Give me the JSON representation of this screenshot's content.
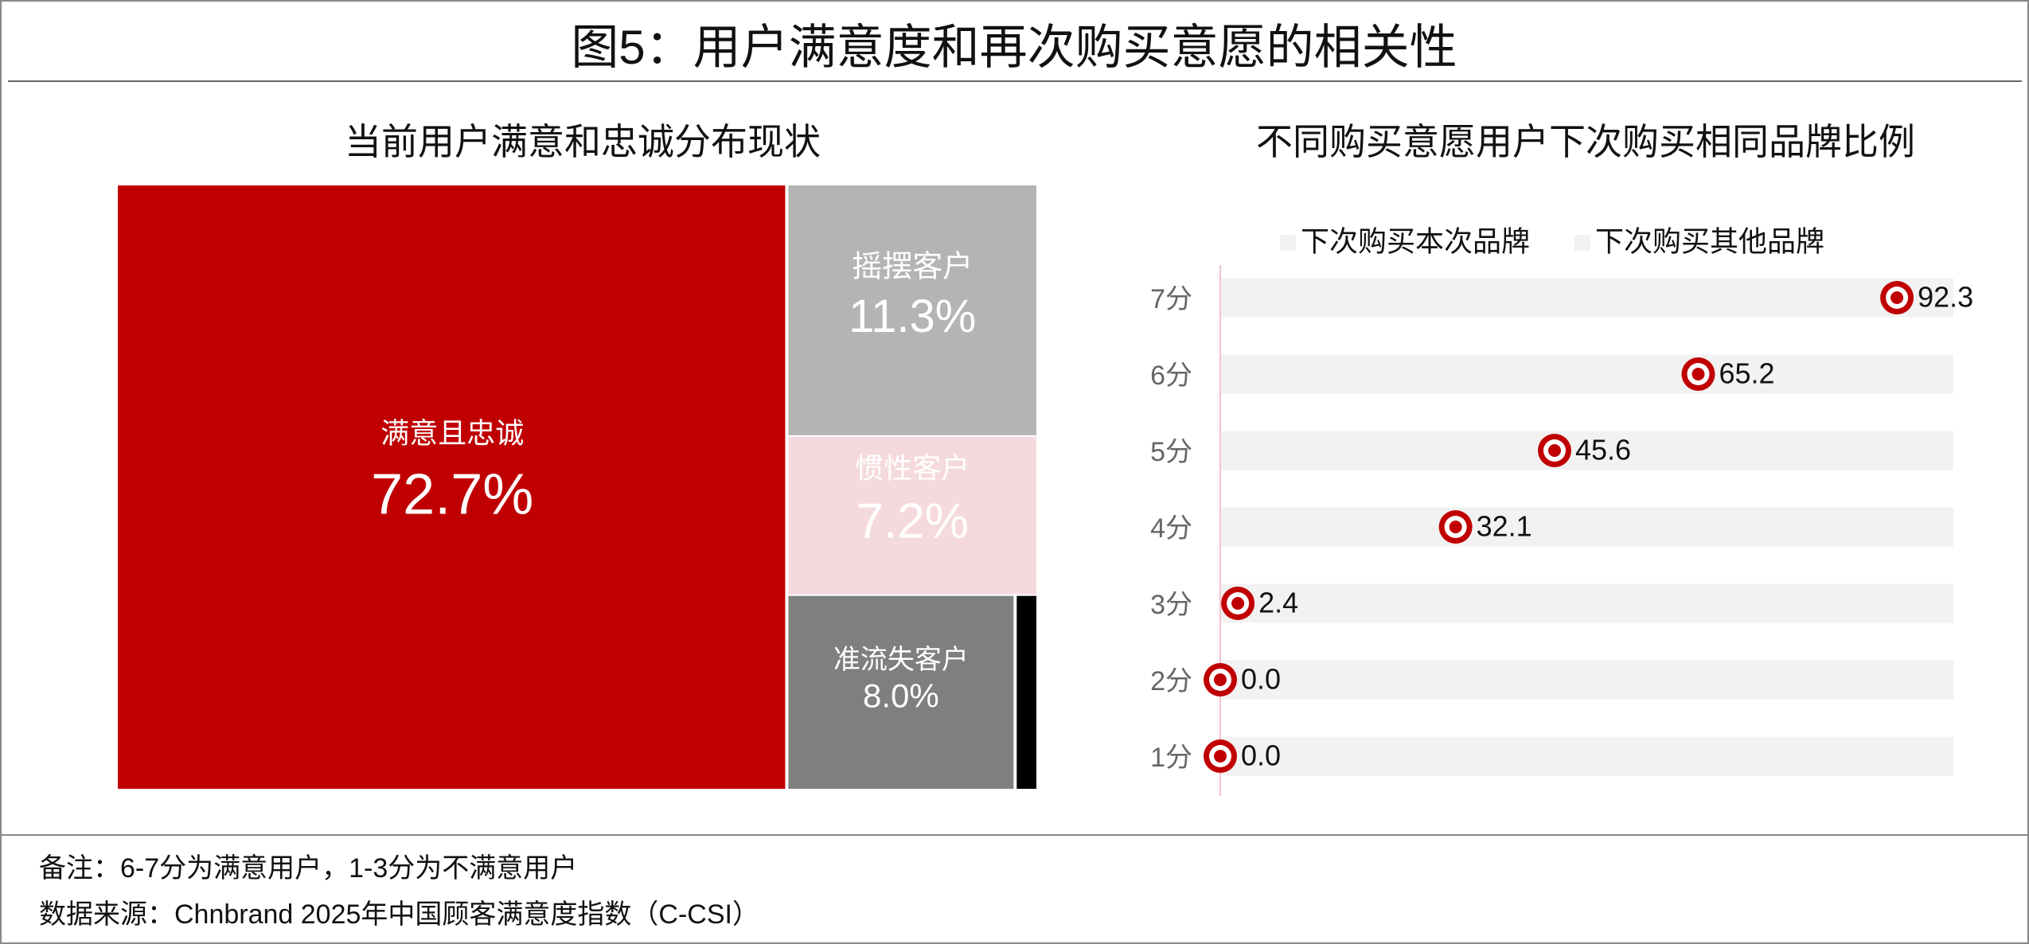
{
  "title": "图5：用户满意度和再次购买意愿的相关性",
  "chart_data": [
    {
      "type": "treemap",
      "title": "当前用户满意和忠诚分布现状",
      "categories": [
        "满意且忠诚",
        "摇摆客户",
        "惯性客户",
        "准流失客户",
        null
      ],
      "values": [
        72.7,
        11.3,
        7.2,
        8.0,
        0.8
      ],
      "value_labels": [
        "72.7%",
        "11.3%",
        "7.2%",
        "8.0%",
        null
      ],
      "colors": [
        "#c00000",
        "#b4b4b4",
        "#f5dadd",
        "#7f7f7f",
        "#000000"
      ]
    },
    {
      "type": "dot",
      "title": "不同购买意愿用户下次购买相同品牌比例",
      "categories": [
        "7分",
        "6分",
        "5分",
        "4分",
        "3分",
        "2分",
        "1分"
      ],
      "series": [
        {
          "name": "下次购买本次品牌",
          "color": "#f2f2f2",
          "values": [
            92.3,
            65.2,
            45.6,
            32.1,
            2.4,
            0.0,
            0.0
          ],
          "value_labels": [
            "92.3",
            "65.2",
            "45.6",
            "32.1",
            "2.4",
            "0.0",
            "0.0"
          ]
        },
        {
          "name": "下次购买其他品牌",
          "color": "#f2f2f2",
          "values": [
            7.7,
            34.8,
            54.4,
            67.9,
            97.6,
            100,
            100
          ]
        }
      ],
      "marker_color": "#c00000",
      "xlim": [
        0,
        100
      ],
      "legend": "top"
    }
  ],
  "notes": [
    "备注：6-7分为满意用户，1-3分为不满意用户",
    "数据来源：Chnbrand 2025年中国顾客满意度指数（C-CSI）"
  ]
}
